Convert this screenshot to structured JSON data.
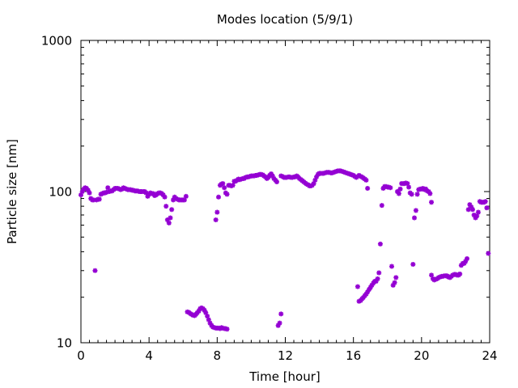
{
  "chart_data": {
    "type": "scatter",
    "title": "Modes location (5/9/1)",
    "xlabel": "Time [hour]",
    "ylabel": "Particle size [nm]",
    "xlim": [
      0,
      24
    ],
    "ylim": [
      10,
      1000
    ],
    "yscale": "log",
    "x_ticks": [
      0,
      4,
      8,
      12,
      16,
      20,
      24
    ],
    "x_tick_labels": [
      "0",
      "4",
      "8",
      "12",
      "16",
      "20",
      "24"
    ],
    "y_ticks": [
      10,
      100,
      1000
    ],
    "y_tick_labels": [
      "10",
      "100",
      "1000"
    ],
    "grid": false,
    "marker_color": "#9400d3",
    "series": [
      {
        "points": [
          [
            0.0,
            95
          ],
          [
            0.08,
            100
          ],
          [
            0.17,
            104
          ],
          [
            0.25,
            106
          ],
          [
            0.33,
            105
          ],
          [
            0.42,
            102
          ],
          [
            0.5,
            98
          ],
          [
            0.58,
            90
          ],
          [
            0.67,
            88
          ],
          [
            0.75,
            88
          ],
          [
            0.83,
            30
          ],
          [
            0.92,
            88
          ],
          [
            1.0,
            89
          ],
          [
            1.08,
            89
          ],
          [
            1.17,
            96
          ],
          [
            1.25,
            97
          ],
          [
            1.33,
            98
          ],
          [
            1.42,
            98
          ],
          [
            1.5,
            99
          ],
          [
            1.58,
            106
          ],
          [
            1.67,
            100
          ],
          [
            1.75,
            101
          ],
          [
            1.83,
            101
          ],
          [
            1.92,
            103
          ],
          [
            2.0,
            105
          ],
          [
            2.08,
            105
          ],
          [
            2.17,
            105
          ],
          [
            2.25,
            104
          ],
          [
            2.33,
            103
          ],
          [
            2.42,
            104
          ],
          [
            2.5,
            106
          ],
          [
            2.58,
            105
          ],
          [
            2.67,
            104
          ],
          [
            2.75,
            103
          ],
          [
            2.83,
            103
          ],
          [
            2.92,
            103
          ],
          [
            3.0,
            102
          ],
          [
            3.08,
            102
          ],
          [
            3.17,
            101
          ],
          [
            3.25,
            101
          ],
          [
            3.33,
            101
          ],
          [
            3.42,
            100
          ],
          [
            3.5,
            100
          ],
          [
            3.58,
            100
          ],
          [
            3.67,
            100
          ],
          [
            3.75,
            100
          ],
          [
            3.83,
            98
          ],
          [
            3.92,
            93
          ],
          [
            4.0,
            96
          ],
          [
            4.08,
            98
          ],
          [
            4.17,
            97
          ],
          [
            4.25,
            97
          ],
          [
            4.33,
            94
          ],
          [
            4.42,
            95
          ],
          [
            4.5,
            97
          ],
          [
            4.58,
            98
          ],
          [
            4.67,
            98
          ],
          [
            4.75,
            97
          ],
          [
            4.83,
            95
          ],
          [
            4.92,
            92
          ],
          [
            5.0,
            80
          ],
          [
            5.08,
            65
          ],
          [
            5.17,
            62
          ],
          [
            5.25,
            67
          ],
          [
            5.33,
            76
          ],
          [
            5.42,
            88
          ],
          [
            5.5,
            92
          ],
          [
            5.58,
            90
          ],
          [
            5.67,
            89
          ],
          [
            5.75,
            88
          ],
          [
            5.83,
            88
          ],
          [
            5.92,
            88
          ],
          [
            6.0,
            88
          ],
          [
            6.08,
            88
          ],
          [
            6.17,
            93
          ],
          [
            6.25,
            16
          ],
          [
            6.33,
            15.9
          ],
          [
            6.42,
            15.6
          ],
          [
            6.5,
            15.4
          ],
          [
            6.58,
            15.2
          ],
          [
            6.67,
            15.1
          ],
          [
            6.75,
            15.4
          ],
          [
            6.83,
            15.8
          ],
          [
            6.92,
            16.2
          ],
          [
            7.0,
            16.8
          ],
          [
            7.08,
            17.0
          ],
          [
            7.17,
            16.8
          ],
          [
            7.25,
            16.4
          ],
          [
            7.33,
            15.8
          ],
          [
            7.42,
            15.0
          ],
          [
            7.5,
            14.2
          ],
          [
            7.58,
            13.5
          ],
          [
            7.67,
            13.0
          ],
          [
            7.75,
            12.7
          ],
          [
            7.83,
            12.6
          ],
          [
            7.92,
            12.5
          ],
          [
            8.0,
            12.5
          ],
          [
            8.08,
            12.5
          ],
          [
            8.17,
            12.4
          ],
          [
            8.25,
            12.6
          ],
          [
            8.33,
            12.5
          ],
          [
            8.42,
            12.4
          ],
          [
            8.5,
            12.4
          ],
          [
            8.58,
            12.3
          ],
          [
            7.92,
            65
          ],
          [
            8.0,
            73
          ],
          [
            8.08,
            92
          ],
          [
            8.17,
            110
          ],
          [
            8.25,
            112
          ],
          [
            8.33,
            113
          ],
          [
            8.42,
            106
          ],
          [
            8.5,
            98
          ],
          [
            8.58,
            96
          ],
          [
            8.67,
            110
          ],
          [
            8.75,
            110
          ],
          [
            8.83,
            109
          ],
          [
            8.92,
            110
          ],
          [
            9.0,
            117
          ],
          [
            9.08,
            117
          ],
          [
            9.17,
            119
          ],
          [
            9.25,
            121
          ],
          [
            9.33,
            120
          ],
          [
            9.42,
            121
          ],
          [
            9.5,
            122
          ],
          [
            9.58,
            122
          ],
          [
            9.67,
            124
          ],
          [
            9.75,
            125
          ],
          [
            9.83,
            125
          ],
          [
            9.92,
            126
          ],
          [
            10.0,
            127
          ],
          [
            10.08,
            127
          ],
          [
            10.17,
            127
          ],
          [
            10.25,
            128
          ],
          [
            10.33,
            128
          ],
          [
            10.42,
            129
          ],
          [
            10.5,
            130
          ],
          [
            10.58,
            130
          ],
          [
            10.67,
            129
          ],
          [
            10.75,
            127
          ],
          [
            10.83,
            125
          ],
          [
            10.92,
            122
          ],
          [
            11.0,
            124
          ],
          [
            11.08,
            128
          ],
          [
            11.17,
            131
          ],
          [
            11.25,
            127
          ],
          [
            11.33,
            122
          ],
          [
            11.42,
            119
          ],
          [
            11.5,
            116
          ],
          [
            11.58,
            13
          ],
          [
            11.67,
            13.5
          ],
          [
            11.75,
            15.5
          ],
          [
            11.75,
            127
          ],
          [
            11.83,
            126
          ],
          [
            11.92,
            124
          ],
          [
            12.0,
            124
          ],
          [
            12.08,
            124
          ],
          [
            12.17,
            125
          ],
          [
            12.25,
            125
          ],
          [
            12.33,
            124
          ],
          [
            12.42,
            124
          ],
          [
            12.5,
            125
          ],
          [
            12.58,
            125
          ],
          [
            12.67,
            127
          ],
          [
            12.75,
            125
          ],
          [
            12.83,
            122
          ],
          [
            12.92,
            120
          ],
          [
            13.0,
            118
          ],
          [
            13.08,
            116
          ],
          [
            13.17,
            114
          ],
          [
            13.25,
            112
          ],
          [
            13.33,
            111
          ],
          [
            13.42,
            109
          ],
          [
            13.5,
            109
          ],
          [
            13.58,
            110
          ],
          [
            13.67,
            113
          ],
          [
            13.75,
            119
          ],
          [
            13.83,
            125
          ],
          [
            13.92,
            130
          ],
          [
            14.0,
            132
          ],
          [
            14.08,
            132
          ],
          [
            14.17,
            132
          ],
          [
            14.25,
            132
          ],
          [
            14.33,
            133
          ],
          [
            14.42,
            134
          ],
          [
            14.5,
            134
          ],
          [
            14.58,
            134
          ],
          [
            14.67,
            133
          ],
          [
            14.75,
            133
          ],
          [
            14.83,
            134
          ],
          [
            14.92,
            135
          ],
          [
            15.0,
            136
          ],
          [
            15.08,
            137
          ],
          [
            15.17,
            137
          ],
          [
            15.25,
            137
          ],
          [
            15.33,
            136
          ],
          [
            15.42,
            135
          ],
          [
            15.5,
            134
          ],
          [
            15.58,
            133
          ],
          [
            15.67,
            132
          ],
          [
            15.75,
            131
          ],
          [
            15.83,
            130
          ],
          [
            15.92,
            129
          ],
          [
            16.0,
            128
          ],
          [
            16.08,
            126
          ],
          [
            16.17,
            124
          ],
          [
            16.25,
            23.5
          ],
          [
            16.33,
            18.8
          ],
          [
            16.42,
            19
          ],
          [
            16.5,
            19.5
          ],
          [
            16.58,
            19.9
          ],
          [
            16.67,
            20.5
          ],
          [
            16.75,
            21
          ],
          [
            16.83,
            21.7
          ],
          [
            16.92,
            22.5
          ],
          [
            17.0,
            23.2
          ],
          [
            17.08,
            24
          ],
          [
            17.17,
            24.8
          ],
          [
            17.25,
            25.5
          ],
          [
            17.33,
            25.5
          ],
          [
            17.42,
            26.5
          ],
          [
            17.5,
            29
          ],
          [
            16.33,
            128
          ],
          [
            16.42,
            126
          ],
          [
            16.5,
            125
          ],
          [
            16.58,
            123
          ],
          [
            16.67,
            121
          ],
          [
            16.75,
            119
          ],
          [
            16.83,
            105
          ],
          [
            17.58,
            45
          ],
          [
            17.67,
            81
          ],
          [
            17.75,
            105
          ],
          [
            17.83,
            108
          ],
          [
            17.92,
            108
          ],
          [
            18.0,
            107
          ],
          [
            18.08,
            107
          ],
          [
            18.17,
            106
          ],
          [
            18.25,
            32
          ],
          [
            18.33,
            24
          ],
          [
            18.42,
            25
          ],
          [
            18.5,
            27
          ],
          [
            18.58,
            100
          ],
          [
            18.67,
            97
          ],
          [
            18.75,
            104
          ],
          [
            18.83,
            113
          ],
          [
            18.92,
            113
          ],
          [
            19.0,
            113
          ],
          [
            19.08,
            114
          ],
          [
            19.17,
            113
          ],
          [
            19.25,
            107
          ],
          [
            19.33,
            98
          ],
          [
            19.42,
            96
          ],
          [
            19.5,
            33
          ],
          [
            19.58,
            67
          ],
          [
            19.67,
            75
          ],
          [
            19.75,
            96
          ],
          [
            19.83,
            103
          ],
          [
            19.92,
            104
          ],
          [
            20.0,
            104
          ],
          [
            20.08,
            105
          ],
          [
            20.17,
            103
          ],
          [
            20.25,
            104
          ],
          [
            20.33,
            101
          ],
          [
            20.42,
            100
          ],
          [
            20.5,
            97
          ],
          [
            20.58,
            85
          ],
          [
            20.58,
            28
          ],
          [
            20.67,
            26.5
          ],
          [
            20.75,
            26
          ],
          [
            20.83,
            26.3
          ],
          [
            20.92,
            26.5
          ],
          [
            21.0,
            27
          ],
          [
            21.08,
            27.2
          ],
          [
            21.17,
            27.5
          ],
          [
            21.25,
            27.5
          ],
          [
            21.33,
            27.7
          ],
          [
            21.42,
            27.7
          ],
          [
            21.5,
            27.7
          ],
          [
            21.58,
            27.2
          ],
          [
            21.67,
            27
          ],
          [
            21.75,
            27.5
          ],
          [
            21.83,
            28
          ],
          [
            21.92,
            28.3
          ],
          [
            22.0,
            28.3
          ],
          [
            22.08,
            28
          ],
          [
            22.17,
            28
          ],
          [
            22.25,
            28.5
          ],
          [
            22.33,
            32.5
          ],
          [
            22.42,
            33.5
          ],
          [
            22.5,
            33.5
          ],
          [
            22.58,
            34.5
          ],
          [
            22.67,
            36
          ],
          [
            22.75,
            76
          ],
          [
            22.83,
            82
          ],
          [
            22.92,
            79
          ],
          [
            23.0,
            76
          ],
          [
            23.08,
            70
          ],
          [
            23.17,
            67
          ],
          [
            23.25,
            69
          ],
          [
            23.33,
            73
          ],
          [
            23.42,
            86
          ],
          [
            23.5,
            85
          ],
          [
            23.58,
            85
          ],
          [
            23.67,
            85
          ],
          [
            23.75,
            86
          ],
          [
            23.83,
            78
          ],
          [
            23.92,
            39
          ]
        ]
      }
    ]
  }
}
